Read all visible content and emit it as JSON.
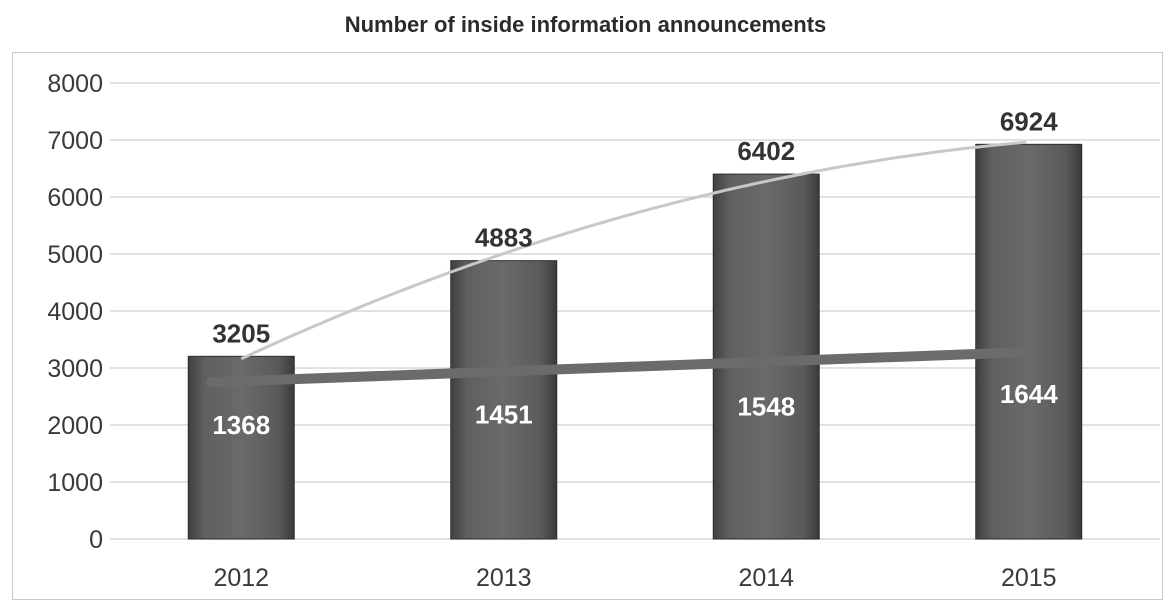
{
  "chart_data": {
    "type": "bar",
    "title": "Number of inside information announcements",
    "categories": [
      "2012",
      "2013",
      "2014",
      "2015"
    ],
    "series": [
      {
        "values": [
          3205,
          4883,
          6402,
          6924
        ]
      },
      {
        "values": [
          1368,
          1451,
          1548,
          1644
        ]
      }
    ],
    "ylim": [
      0,
      8000
    ],
    "yticks": [
      0,
      1000,
      2000,
      3000,
      4000,
      5000,
      6000,
      7000,
      8000
    ],
    "grid": true,
    "trend_lines": [
      "polynomial curve over bar totals",
      "linear trend line"
    ],
    "colors": {
      "bar": "#5a5a5a",
      "curve": "#c8c8c8",
      "trend": "#6b6b6b",
      "grid": "#d9d9d9"
    }
  }
}
